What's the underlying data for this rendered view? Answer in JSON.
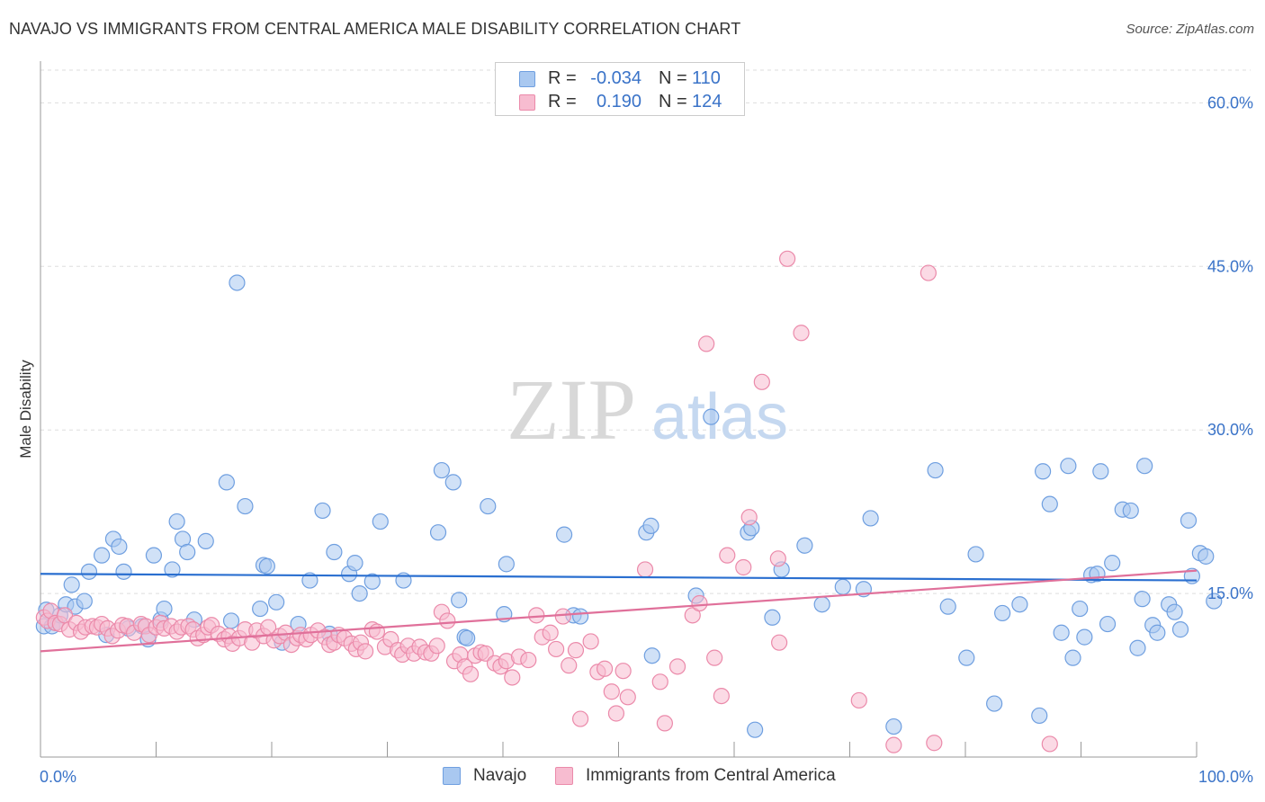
{
  "title": "NAVAJO VS IMMIGRANTS FROM CENTRAL AMERICA MALE DISABILITY CORRELATION CHART",
  "source": "Source: ZipAtlas.com",
  "watermark": {
    "zip": "ZIP",
    "atlas": "atlas"
  },
  "legend": {
    "rows": [
      {
        "r_label": "R =",
        "r_value": "-0.034",
        "n_label": "N =",
        "n_value": "110"
      },
      {
        "r_label": "R =",
        "r_value": "0.190",
        "n_label": "N =",
        "n_value": "124"
      }
    ]
  },
  "bottom_legend": {
    "navajo": "Navajo",
    "immigrants": "Immigrants from Central America"
  },
  "colors": {
    "navajo_fill": "#a9c8f0",
    "navajo_stroke": "#6f9fe0",
    "navajo_line": "#2a6fd0",
    "immig_fill": "#f7bcd0",
    "immig_stroke": "#eb8aaa",
    "immig_line": "#e0709a",
    "axis_label": "#3a73c8",
    "grid": "#dddddd"
  },
  "chart_data": {
    "type": "scatter",
    "title": "NAVAJO VS IMMIGRANTS FROM CENTRAL AMERICA MALE DISABILITY CORRELATION CHART",
    "xlabel": "",
    "ylabel": "Male Disability",
    "xlim": [
      0,
      100
    ],
    "ylim": [
      0,
      63
    ],
    "x_tick_labels": [
      "0.0%",
      "100.0%"
    ],
    "y_ticks": [
      15,
      30,
      45,
      60
    ],
    "y_tick_labels": [
      "15.0%",
      "30.0%",
      "45.0%",
      "60.0%"
    ],
    "series": [
      {
        "name": "Navajo",
        "r": -0.034,
        "n": 110,
        "trend": {
          "x": [
            0,
            100
          ],
          "y": [
            16.8,
            16.2
          ]
        },
        "points": [
          [
            0.3,
            12
          ],
          [
            0.5,
            13.5
          ],
          [
            1,
            12
          ],
          [
            1.3,
            12.3
          ],
          [
            1.7,
            13
          ],
          [
            2.2,
            14
          ],
          [
            2.7,
            15.8
          ],
          [
            3,
            13.8
          ],
          [
            3.8,
            14.3
          ],
          [
            4.2,
            17
          ],
          [
            5.3,
            18.5
          ],
          [
            5.7,
            11.2
          ],
          [
            6.3,
            20
          ],
          [
            6.8,
            19.3
          ],
          [
            7.2,
            17
          ],
          [
            7.6,
            11.8
          ],
          [
            8.8,
            12
          ],
          [
            9.3,
            10.8
          ],
          [
            9.8,
            18.5
          ],
          [
            10.4,
            12.6
          ],
          [
            10.7,
            13.6
          ],
          [
            11.4,
            17.2
          ],
          [
            11.8,
            21.6
          ],
          [
            12.3,
            20
          ],
          [
            12.7,
            18.8
          ],
          [
            13.3,
            12.6
          ],
          [
            14.3,
            19.8
          ],
          [
            16.1,
            25.2
          ],
          [
            16.5,
            12.5
          ],
          [
            17,
            43.5
          ],
          [
            17.7,
            23
          ],
          [
            19,
            13.6
          ],
          [
            19.3,
            17.6
          ],
          [
            19.6,
            17.5
          ],
          [
            20.4,
            14.2
          ],
          [
            20.9,
            10.5
          ],
          [
            22.3,
            12.2
          ],
          [
            23.3,
            16.2
          ],
          [
            24.4,
            22.6
          ],
          [
            25,
            11.3
          ],
          [
            25.4,
            18.8
          ],
          [
            26.7,
            16.8
          ],
          [
            27.2,
            17.8
          ],
          [
            27.6,
            15
          ],
          [
            28.7,
            16.1
          ],
          [
            29.4,
            21.6
          ],
          [
            31.4,
            16.2
          ],
          [
            34.4,
            20.6
          ],
          [
            34.7,
            26.3
          ],
          [
            35.7,
            25.2
          ],
          [
            36.2,
            14.4
          ],
          [
            36.7,
            11
          ],
          [
            36.9,
            10.9
          ],
          [
            38.7,
            23
          ],
          [
            40.1,
            13.1
          ],
          [
            40.3,
            17.7
          ],
          [
            45.3,
            20.4
          ],
          [
            46.1,
            13
          ],
          [
            46.7,
            12.9
          ],
          [
            52.4,
            20.6
          ],
          [
            52.8,
            21.2
          ],
          [
            52.9,
            9.3
          ],
          [
            56.7,
            14.8
          ],
          [
            58,
            31.2
          ],
          [
            61.2,
            20.6
          ],
          [
            61.5,
            21
          ],
          [
            61.8,
            2.5
          ],
          [
            63.3,
            12.8
          ],
          [
            64.1,
            17.2
          ],
          [
            66.1,
            19.4
          ],
          [
            67.6,
            14
          ],
          [
            69.4,
            15.6
          ],
          [
            71.2,
            15.4
          ],
          [
            71.8,
            21.9
          ],
          [
            73.8,
            2.8
          ],
          [
            77.4,
            26.3
          ],
          [
            78.5,
            13.8
          ],
          [
            80.1,
            9.1
          ],
          [
            80.9,
            18.6
          ],
          [
            82.5,
            4.9
          ],
          [
            83.2,
            13.2
          ],
          [
            84.7,
            14
          ],
          [
            86.4,
            3.8
          ],
          [
            86.7,
            26.2
          ],
          [
            87.3,
            23.2
          ],
          [
            88.3,
            11.4
          ],
          [
            88.9,
            26.7
          ],
          [
            89.3,
            9.1
          ],
          [
            89.9,
            13.6
          ],
          [
            90.3,
            11
          ],
          [
            90.9,
            16.7
          ],
          [
            91.4,
            16.8
          ],
          [
            91.7,
            26.2
          ],
          [
            92.3,
            12.2
          ],
          [
            92.7,
            17.8
          ],
          [
            93.6,
            22.7
          ],
          [
            94.3,
            22.6
          ],
          [
            94.9,
            10
          ],
          [
            95.3,
            14.5
          ],
          [
            95.5,
            26.7
          ],
          [
            96.2,
            12.1
          ],
          [
            96.6,
            11.4
          ],
          [
            97.6,
            14
          ],
          [
            98.1,
            13.3
          ],
          [
            98.6,
            11.7
          ],
          [
            99.3,
            21.7
          ],
          [
            99.6,
            16.6
          ],
          [
            100.3,
            18.7
          ],
          [
            100.8,
            18.4
          ],
          [
            101.5,
            14.3
          ]
        ]
      },
      {
        "name": "Immigrants from Central America",
        "r": 0.19,
        "n": 124,
        "trend": {
          "x": [
            0,
            100
          ],
          "y": [
            9.7,
            17.1
          ]
        },
        "points": [
          [
            0.3,
            12.8
          ],
          [
            0.6,
            12.5
          ],
          [
            0.9,
            13.4
          ],
          [
            1.3,
            12.3
          ],
          [
            1.7,
            12.2
          ],
          [
            2.1,
            13
          ],
          [
            2.5,
            11.7
          ],
          [
            3.1,
            12.3
          ],
          [
            3.5,
            11.5
          ],
          [
            3.9,
            11.9
          ],
          [
            4.5,
            12
          ],
          [
            4.9,
            11.9
          ],
          [
            5.3,
            12.2
          ],
          [
            5.8,
            11.8
          ],
          [
            6.2,
            11.1
          ],
          [
            6.7,
            11.6
          ],
          [
            7.1,
            12.1
          ],
          [
            7.5,
            12
          ],
          [
            8.1,
            11.4
          ],
          [
            8.7,
            12.2
          ],
          [
            9.1,
            12
          ],
          [
            9.4,
            11.2
          ],
          [
            10,
            11.9
          ],
          [
            10.4,
            12.3
          ],
          [
            10.7,
            11.8
          ],
          [
            11.3,
            12
          ],
          [
            11.8,
            11.5
          ],
          [
            12.2,
            11.9
          ],
          [
            12.8,
            12
          ],
          [
            13.2,
            11.7
          ],
          [
            13.6,
            10.9
          ],
          [
            14.1,
            11.2
          ],
          [
            14.5,
            11.9
          ],
          [
            14.8,
            12.1
          ],
          [
            15.4,
            11.3
          ],
          [
            15.9,
            10.8
          ],
          [
            16.3,
            11.1
          ],
          [
            16.6,
            10.4
          ],
          [
            17.2,
            10.9
          ],
          [
            17.7,
            11.7
          ],
          [
            18.3,
            10.5
          ],
          [
            18.7,
            11.6
          ],
          [
            19.3,
            11.1
          ],
          [
            19.7,
            11.9
          ],
          [
            20.2,
            10.7
          ],
          [
            20.7,
            11.1
          ],
          [
            21.2,
            11.4
          ],
          [
            21.7,
            10.3
          ],
          [
            22.2,
            10.9
          ],
          [
            22.5,
            11.2
          ],
          [
            23,
            10.8
          ],
          [
            23.4,
            11.2
          ],
          [
            24,
            11.6
          ],
          [
            24.6,
            11
          ],
          [
            25,
            10.3
          ],
          [
            25.4,
            10.5
          ],
          [
            25.8,
            11.2
          ],
          [
            26.3,
            10.9
          ],
          [
            26.9,
            10.4
          ],
          [
            27.3,
            9.9
          ],
          [
            27.7,
            10.5
          ],
          [
            28.1,
            9.7
          ],
          [
            28.7,
            11.7
          ],
          [
            29.1,
            11.5
          ],
          [
            29.8,
            10.1
          ],
          [
            30.3,
            10.8
          ],
          [
            30.9,
            9.8
          ],
          [
            31.3,
            9.4
          ],
          [
            31.8,
            10.2
          ],
          [
            32.3,
            9.5
          ],
          [
            32.8,
            10.1
          ],
          [
            33.3,
            9.6
          ],
          [
            33.8,
            9.5
          ],
          [
            34.3,
            10.2
          ],
          [
            34.7,
            13.3
          ],
          [
            35.2,
            12.5
          ],
          [
            35.8,
            8.8
          ],
          [
            36.3,
            9.4
          ],
          [
            36.7,
            8.3
          ],
          [
            37.2,
            7.6
          ],
          [
            37.6,
            9.3
          ],
          [
            38.1,
            9.6
          ],
          [
            38.5,
            9.5
          ],
          [
            39.3,
            8.6
          ],
          [
            39.8,
            8.3
          ],
          [
            40.3,
            8.8
          ],
          [
            40.8,
            7.3
          ],
          [
            41.4,
            9.2
          ],
          [
            42.2,
            8.9
          ],
          [
            42.9,
            13
          ],
          [
            43.4,
            11
          ],
          [
            44.1,
            11.4
          ],
          [
            44.6,
            9.9
          ],
          [
            45.2,
            12.9
          ],
          [
            45.7,
            8.4
          ],
          [
            46.3,
            9.8
          ],
          [
            46.7,
            3.5
          ],
          [
            47.6,
            10.6
          ],
          [
            48.2,
            7.8
          ],
          [
            48.8,
            8.1
          ],
          [
            49.4,
            6
          ],
          [
            49.8,
            4
          ],
          [
            50.4,
            7.9
          ],
          [
            50.8,
            5.5
          ],
          [
            52.3,
            17.2
          ],
          [
            53.6,
            6.9
          ],
          [
            54,
            3.1
          ],
          [
            55.1,
            8.3
          ],
          [
            56.4,
            13
          ],
          [
            57,
            14.1
          ],
          [
            58.3,
            9.1
          ],
          [
            58.9,
            5.6
          ],
          [
            59.4,
            18.5
          ],
          [
            60.8,
            17.4
          ],
          [
            61.3,
            22
          ],
          [
            62.4,
            34.4
          ],
          [
            63.8,
            18.2
          ],
          [
            63.9,
            10.5
          ],
          [
            64.6,
            45.7
          ],
          [
            65.8,
            38.9
          ],
          [
            70.8,
            5.2
          ],
          [
            73.8,
            1.1
          ],
          [
            76.8,
            44.4
          ],
          [
            77.3,
            1.3
          ],
          [
            87.3,
            1.2
          ],
          [
            57.6,
            37.9
          ]
        ]
      }
    ]
  }
}
